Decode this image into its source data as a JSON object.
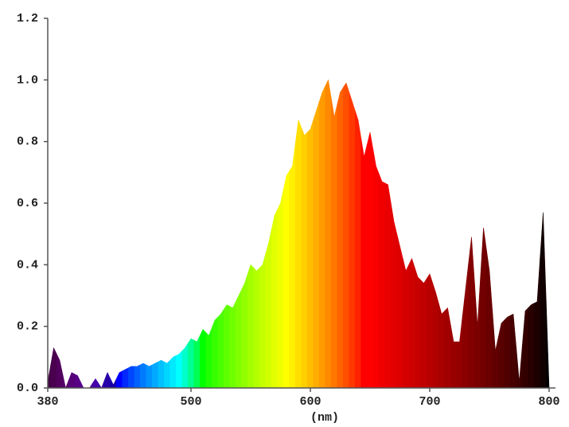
{
  "chart_data": {
    "type": "spectrum",
    "x_label": "(nm)",
    "x": [
      380,
      385,
      390,
      395,
      400,
      405,
      410,
      415,
      420,
      425,
      430,
      435,
      440,
      445,
      450,
      455,
      460,
      465,
      470,
      475,
      480,
      485,
      490,
      495,
      500,
      505,
      510,
      515,
      520,
      525,
      530,
      535,
      540,
      545,
      550,
      555,
      560,
      565,
      570,
      575,
      580,
      585,
      590,
      595,
      600,
      605,
      610,
      615,
      620,
      625,
      630,
      635,
      640,
      645,
      650,
      655,
      660,
      665,
      670,
      675,
      680,
      685,
      690,
      695,
      700,
      705,
      710,
      715,
      720,
      725,
      730,
      735,
      740,
      745,
      750,
      755,
      760,
      765,
      770,
      775,
      780,
      785,
      790,
      795,
      800
    ],
    "values": [
      0.02,
      0.13,
      0.09,
      0.0,
      0.05,
      0.04,
      0.0,
      0.0,
      0.03,
      0.0,
      0.05,
      0.01,
      0.05,
      0.06,
      0.07,
      0.07,
      0.08,
      0.07,
      0.08,
      0.09,
      0.08,
      0.1,
      0.11,
      0.13,
      0.16,
      0.15,
      0.19,
      0.17,
      0.22,
      0.24,
      0.27,
      0.26,
      0.3,
      0.34,
      0.4,
      0.38,
      0.4,
      0.47,
      0.56,
      0.6,
      0.69,
      0.72,
      0.87,
      0.82,
      0.84,
      0.9,
      0.96,
      1.0,
      0.88,
      0.96,
      0.99,
      0.93,
      0.87,
      0.75,
      0.83,
      0.72,
      0.67,
      0.66,
      0.54,
      0.46,
      0.38,
      0.42,
      0.36,
      0.34,
      0.37,
      0.31,
      0.24,
      0.26,
      0.15,
      0.15,
      0.32,
      0.49,
      0.2,
      0.52,
      0.38,
      0.12,
      0.21,
      0.23,
      0.24,
      0.02,
      0.25,
      0.27,
      0.28,
      0.57,
      0.0
    ],
    "xlim": [
      380,
      800
    ],
    "xticks": [
      380,
      500,
      600,
      700,
      800
    ],
    "ylim": [
      0,
      1.2
    ],
    "yticks": [
      {
        "value": 0,
        "label": "0.0"
      },
      {
        "value": 0.2,
        "label": "0.2"
      },
      {
        "value": 0.4,
        "label": "0.4"
      },
      {
        "value": 0.6,
        "label": "0.6"
      },
      {
        "value": 0.8,
        "label": "0.8"
      },
      {
        "value": 1,
        "label": "1.0"
      },
      {
        "value": 1.2,
        "label": "1.2"
      }
    ]
  }
}
